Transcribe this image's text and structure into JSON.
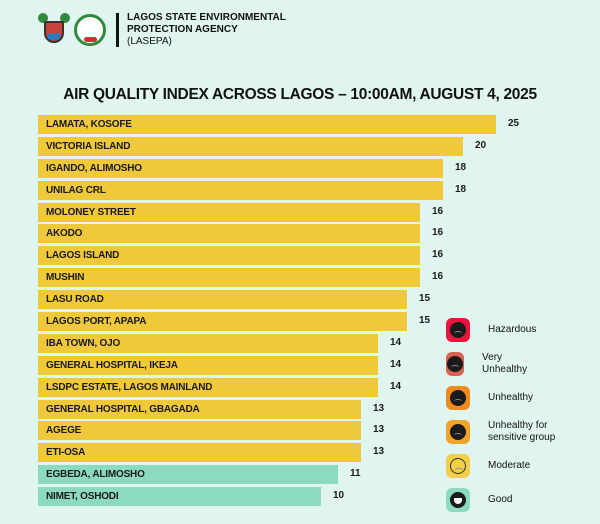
{
  "header": {
    "agency_line1": "LAGOS STATE ENVIRONMENTAL",
    "agency_line2": "PROTECTION AGENCY",
    "agency_line3": "(LASEPA)"
  },
  "colors": {
    "background": "#e0f5ef",
    "moderate_bar": "#f0c93a",
    "good_bar": "#8ddbbf",
    "hazardous": "#e8163c",
    "very_unhealthy": "#d95f50",
    "unhealthy": "#f08a1c",
    "unhealthy_sensitive": "#f2a32a",
    "moderate": "#f2cf4a",
    "good": "#8ddbbf"
  },
  "chart_data": {
    "type": "bar",
    "orientation": "horizontal",
    "title": "AIR QUALITY INDEX ACROSS LAGOS – 10:00AM, AUGUST 4, 2025",
    "xlabel": "",
    "ylabel": "",
    "grid": false,
    "categories": [
      "LAMATA, KOSOFE",
      "VICTORIA ISLAND",
      "IGANDO, ALIMOSHO",
      "UNILAG CRL",
      "MOLONEY STREET",
      "AKODO",
      "LAGOS ISLAND",
      "MUSHIN",
      "LASU ROAD",
      "LAGOS PORT, APAPA",
      "IBA TOWN, OJO",
      "GENERAL HOSPITAL, IKEJA",
      "LSDPC ESTATE, LAGOS MAINLAND",
      "GENERAL HOSPITAL, GBAGADA",
      "AGEGE",
      "ETI-OSA",
      "EGBEDA, ALIMOSHO",
      "NIMET, OSHODI"
    ],
    "values": [
      25,
      20,
      18,
      18,
      16,
      16,
      16,
      16,
      15,
      15,
      14,
      14,
      14,
      13,
      13,
      13,
      11,
      10
    ],
    "bar_colors": [
      "#f0c93a",
      "#f0c93a",
      "#f0c93a",
      "#f0c93a",
      "#f0c93a",
      "#f0c93a",
      "#f0c93a",
      "#f0c93a",
      "#f0c93a",
      "#f0c93a",
      "#f0c93a",
      "#f0c93a",
      "#f0c93a",
      "#f0c93a",
      "#f0c93a",
      "#f0c93a",
      "#8ddbbf",
      "#8ddbbf"
    ],
    "bar_pixel_widths": [
      458,
      425,
      405,
      405,
      382,
      382,
      382,
      382,
      369,
      369,
      340,
      340,
      340,
      323,
      323,
      323,
      300,
      283
    ],
    "legend_position": "right",
    "legend": [
      "Hazardous",
      "Very Unhealthy",
      "Unhealthy",
      "Unhealthy for sensitive group",
      "Moderate",
      "Good"
    ]
  },
  "legend": [
    {
      "label": "Hazardous",
      "icon": "sad-face-icon",
      "color": "#e8163c"
    },
    {
      "label": "Very Unhealthy",
      "icon": "sad-face-icon",
      "color": "#d95f50"
    },
    {
      "label": "Unhealthy",
      "icon": "sad-face-icon",
      "color": "#f08a1c"
    },
    {
      "label": "Unhealthy for sensitive group",
      "icon": "sad-face-icon",
      "color": "#f2a32a"
    },
    {
      "label": "Moderate",
      "icon": "neutral-faces-icon",
      "color": "#f2cf4a"
    },
    {
      "label": "Good",
      "icon": "happy-face-icon",
      "color": "#8ddbbf"
    }
  ]
}
